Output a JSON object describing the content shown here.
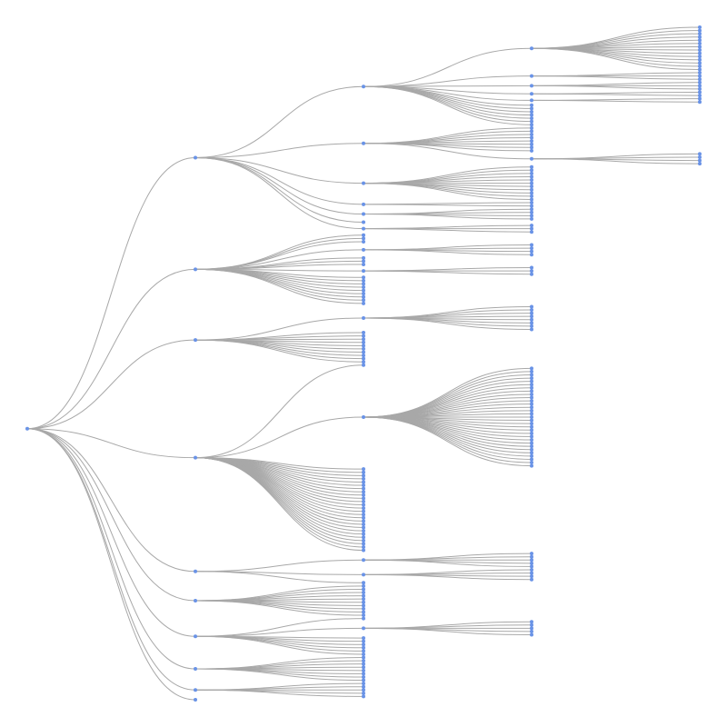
{
  "diagram": {
    "type": "tree",
    "orientation": "left-to-right",
    "link_color": "#a8a8a8",
    "node_color": "#6a93e6",
    "root": {
      "children": [
        {
          "children": [
            {
              "children": [
                {
                  "children": 14
                },
                {
                  "children": 3
                },
                {
                  "children": 3
                },
                {
                  "children": 2
                },
                {
                  "children": 2
                },
                {
                  "children": 0
                },
                {
                  "children": 0
                },
                {
                  "children": 0
                },
                {
                  "children": 0
                },
                {
                  "children": 0
                },
                {
                  "children": 0
                },
                {
                  "children": 0
                }
              ]
            },
            {
              "children": [
                {
                  "children": 0
                },
                {
                  "children": 0
                },
                {
                  "children": 0
                },
                {
                  "children": 0
                },
                {
                  "children": 0
                },
                {
                  "children": 0
                },
                {
                  "children": 0
                },
                {
                  "children": 0
                },
                {
                  "children": 4
                }
              ]
            },
            {
              "children": 11
            },
            {
              "children": 2
            },
            {
              "children": 4
            },
            {
              "children": 0
            },
            {
              "children": 3
            }
          ]
        },
        {
          "children": [
            {
              "children": 0
            },
            {
              "children": 0
            },
            {
              "children": 0
            },
            {
              "children": 4
            },
            {
              "children": 0
            },
            {
              "children": 0
            },
            {
              "children": 0
            },
            {
              "children": 3
            },
            {
              "children": 0
            },
            {
              "children": 0
            },
            {
              "children": 0
            },
            {
              "children": 0
            },
            {
              "children": 0
            },
            {
              "children": 0
            },
            {
              "children": 0
            },
            {
              "children": 0
            },
            {
              "children": 0
            }
          ]
        },
        {
          "children": [
            {
              "children": 8
            },
            {
              "children": 0
            },
            {
              "children": 0
            },
            {
              "children": 0
            },
            {
              "children": 0
            },
            {
              "children": 0
            },
            {
              "children": 0
            },
            {
              "children": 0
            },
            {
              "children": 0
            },
            {
              "children": 0
            },
            {
              "children": 0
            }
          ]
        },
        {
          "children": [
            {
              "children": 0
            },
            {
              "children": 31
            },
            {
              "children": 0
            },
            {
              "children": 0
            },
            {
              "children": 0
            },
            {
              "children": 0
            },
            {
              "children": 0
            },
            {
              "children": 0
            },
            {
              "children": 0
            },
            {
              "children": 0
            },
            {
              "children": 0
            },
            {
              "children": 0
            },
            {
              "children": 0
            },
            {
              "children": 0
            },
            {
              "children": 0
            },
            {
              "children": 0
            },
            {
              "children": 0
            },
            {
              "children": 0
            },
            {
              "children": 0
            },
            {
              "children": 0
            },
            {
              "children": 0
            },
            {
              "children": 0
            },
            {
              "children": 0
            },
            {
              "children": 0
            },
            {
              "children": 0
            },
            {
              "children": 0
            },
            {
              "children": 0
            },
            {
              "children": 0
            }
          ]
        },
        {
          "children": [
            {
              "children": 5
            },
            {
              "children": 4
            },
            {
              "children": 0
            }
          ]
        },
        {
          "children": 10
        },
        {
          "children": [
            {
              "children": 0
            },
            {
              "children": 5
            },
            {
              "children": 0
            },
            {
              "children": 0
            },
            {
              "children": 0
            },
            {
              "children": 0
            },
            {
              "children": 0
            },
            {
              "children": 0
            }
          ]
        },
        {
          "children": 8
        },
        {
          "children": 5
        },
        {
          "children": 0
        }
      ]
    }
  }
}
